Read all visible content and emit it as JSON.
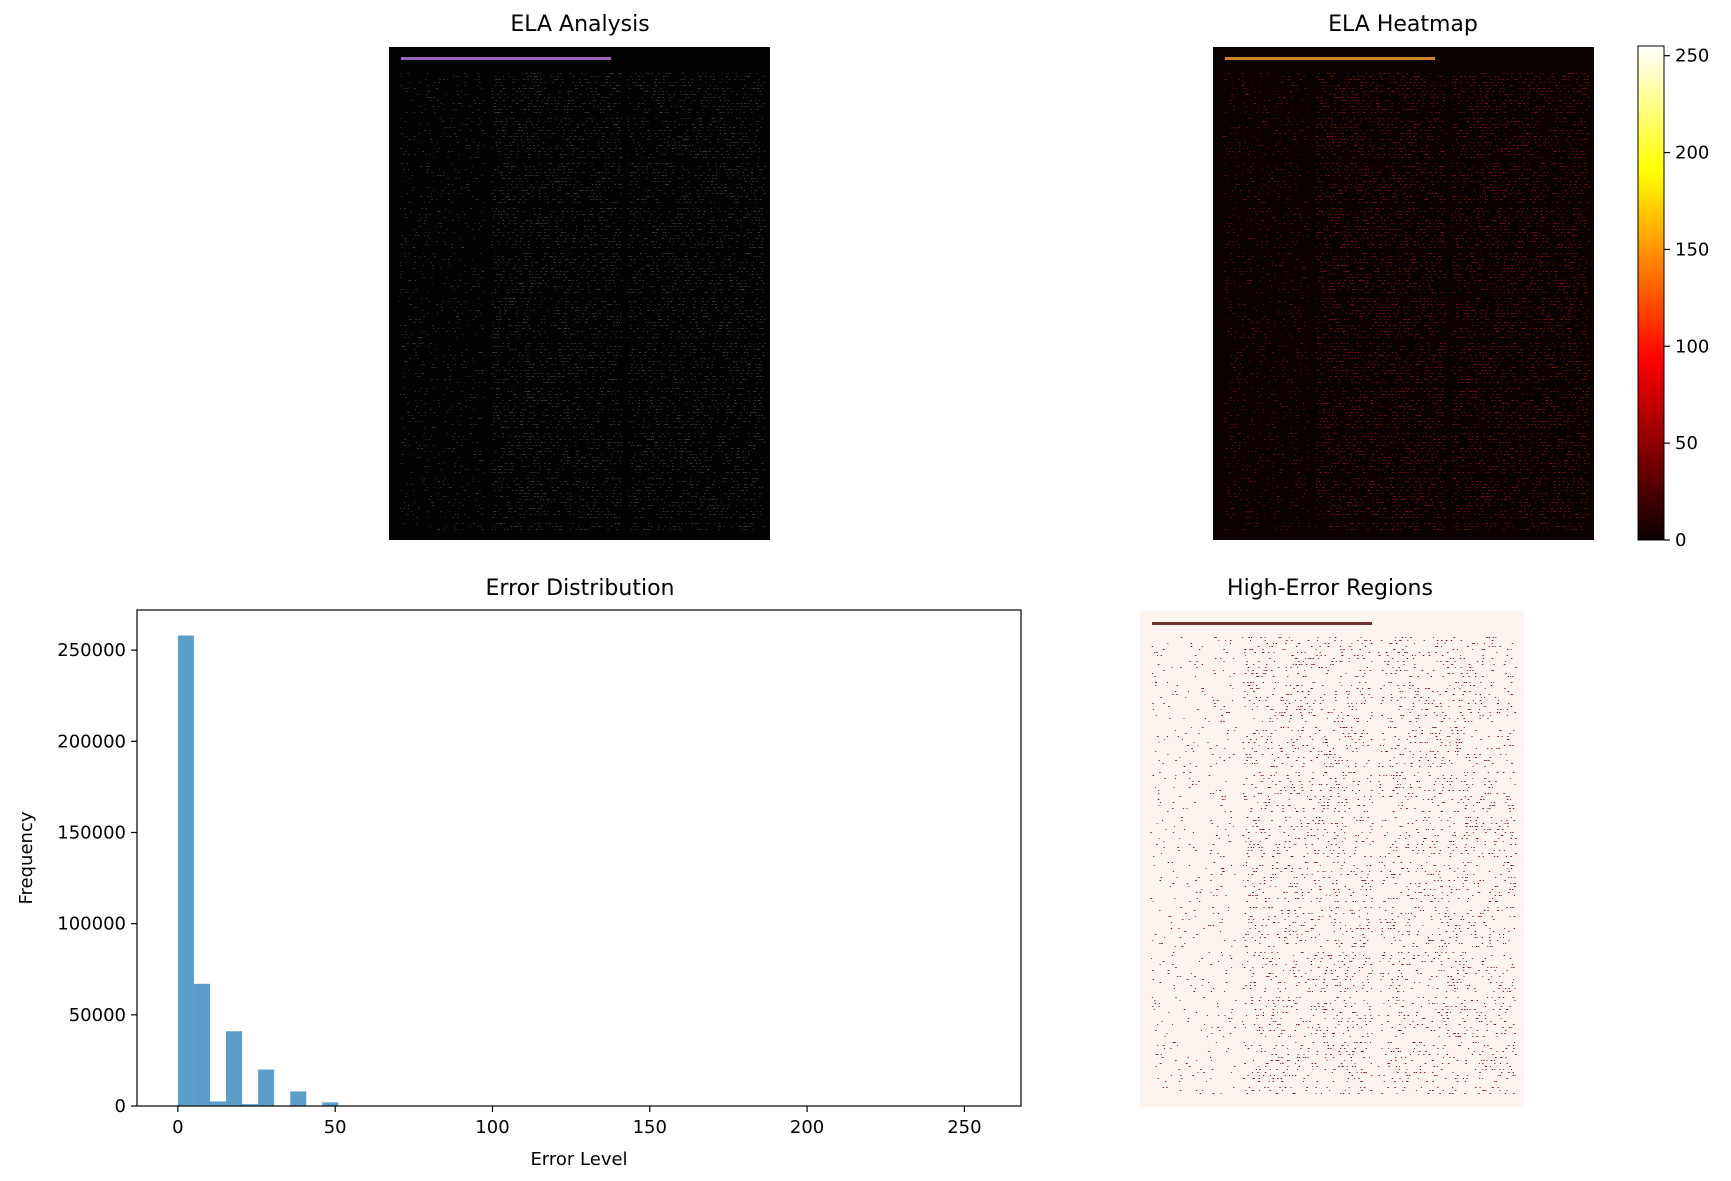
{
  "panels": {
    "ela_analysis": {
      "title": "ELA Analysis"
    },
    "ela_heatmap": {
      "title": "ELA Heatmap"
    },
    "error_distribution": {
      "title": "Error Distribution"
    },
    "high_error_regions": {
      "title": "High-Error Regions"
    }
  },
  "colors": {
    "hist_bar": "#5b9ec9",
    "ela_bg": "#030303",
    "heatmap_bg": "#0c0101",
    "regions_bg": "#fdf3ef"
  },
  "chart_data": [
    {
      "type": "bar",
      "panel": "error_distribution",
      "title": "Error Distribution",
      "xlabel": "Error Level",
      "ylabel": "Frequency",
      "xlim": [
        -13,
        268
      ],
      "ylim": [
        0,
        272000
      ],
      "xticks": [
        0,
        50,
        100,
        150,
        200,
        250
      ],
      "yticks": [
        0,
        50000,
        100000,
        150000,
        200000,
        250000
      ],
      "bin_width": 5.1,
      "bins": [
        {
          "x0": 0.0,
          "value": 258000
        },
        {
          "x0": 5.1,
          "value": 67000
        },
        {
          "x0": 10.2,
          "value": 2500
        },
        {
          "x0": 15.3,
          "value": 41000
        },
        {
          "x0": 20.4,
          "value": 1000
        },
        {
          "x0": 25.5,
          "value": 20000
        },
        {
          "x0": 30.6,
          "value": 300
        },
        {
          "x0": 35.7,
          "value": 8000
        },
        {
          "x0": 40.8,
          "value": 200
        },
        {
          "x0": 45.9,
          "value": 2000
        },
        {
          "x0": 51.0,
          "value": 100
        },
        {
          "x0": 56.1,
          "value": 50
        }
      ],
      "grid": false
    },
    {
      "type": "heatmap",
      "panel": "ela_heatmap",
      "colorbar": {
        "colormap": "hot",
        "range": [
          0,
          255
        ],
        "ticks": [
          0,
          50,
          100,
          150,
          200,
          250
        ]
      }
    }
  ]
}
